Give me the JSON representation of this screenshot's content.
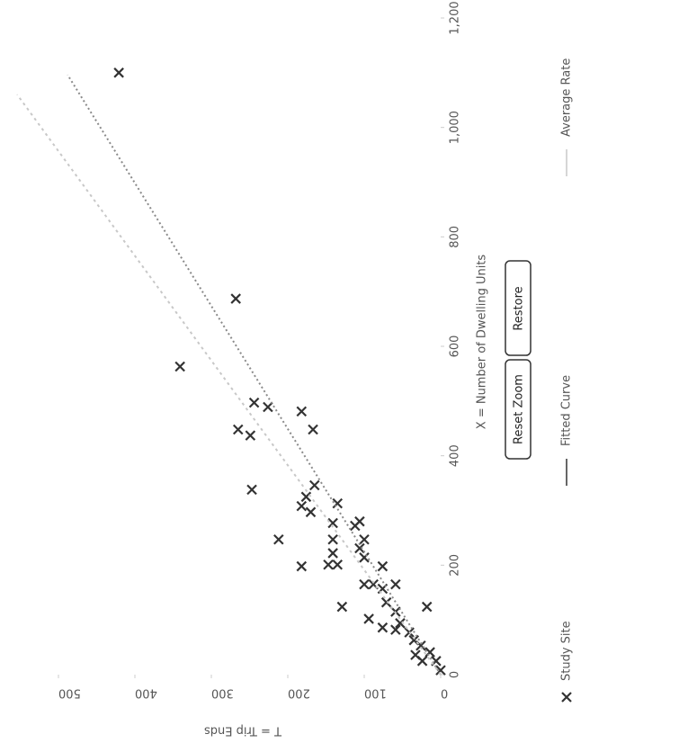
{
  "chart_data": {
    "type": "scatter",
    "x_label": "X = Number of Dwelling Units",
    "y_label": "T = Trip Ends",
    "xlim": [
      0,
      1200
    ],
    "ylim": [
      0,
      560
    ],
    "xticks": [
      0,
      200,
      400,
      600,
      800,
      {
        "value": 1000,
        "label": "1,000"
      },
      {
        "value": 1200,
        "label": "1,200"
      }
    ],
    "yticks": [
      0,
      100,
      200,
      300,
      400,
      500
    ],
    "buttons": [
      "Reset Zoom",
      "Restore"
    ],
    "series": [
      {
        "name": "Study Site",
        "color": "#333333",
        "marker": "x",
        "x": [
          1100,
          687,
          563,
          481,
          497,
          489,
          448,
          437,
          448,
          338,
          247,
          198,
          308,
          325,
          346,
          313,
          277,
          247,
          222,
          201,
          201,
          124,
          280,
          247,
          231,
          214,
          198,
          165,
          165,
          157,
          165,
          102,
          86,
          115,
          94,
          77,
          63,
          53,
          124,
          41,
          25,
          8,
          25,
          36,
          132,
          82,
          272,
          297
        ],
        "values": [
          421,
          268,
          341,
          182,
          244,
          226,
          265,
          249,
          167,
          247,
          212,
          182,
          182,
          176,
          165,
          135,
          141,
          141,
          141,
          147,
          135,
          129,
          106,
          100,
          106,
          100,
          76,
          100,
          88,
          76,
          59,
          94,
          76,
          59,
          53,
          41,
          35,
          26,
          18,
          14,
          6,
          0,
          24,
          33,
          71,
          59,
          112,
          170
        ]
      },
      {
        "name": "Fitted Curve",
        "color": "#8a8a8a",
        "marker": "line",
        "x": [
          0,
          1096
        ],
        "values": [
          0,
          488
        ]
      },
      {
        "name": "Average Rate",
        "color": "#c8c8c8",
        "marker": "line",
        "x": [
          0,
          1060
        ],
        "values": [
          0,
          554
        ]
      }
    ]
  }
}
